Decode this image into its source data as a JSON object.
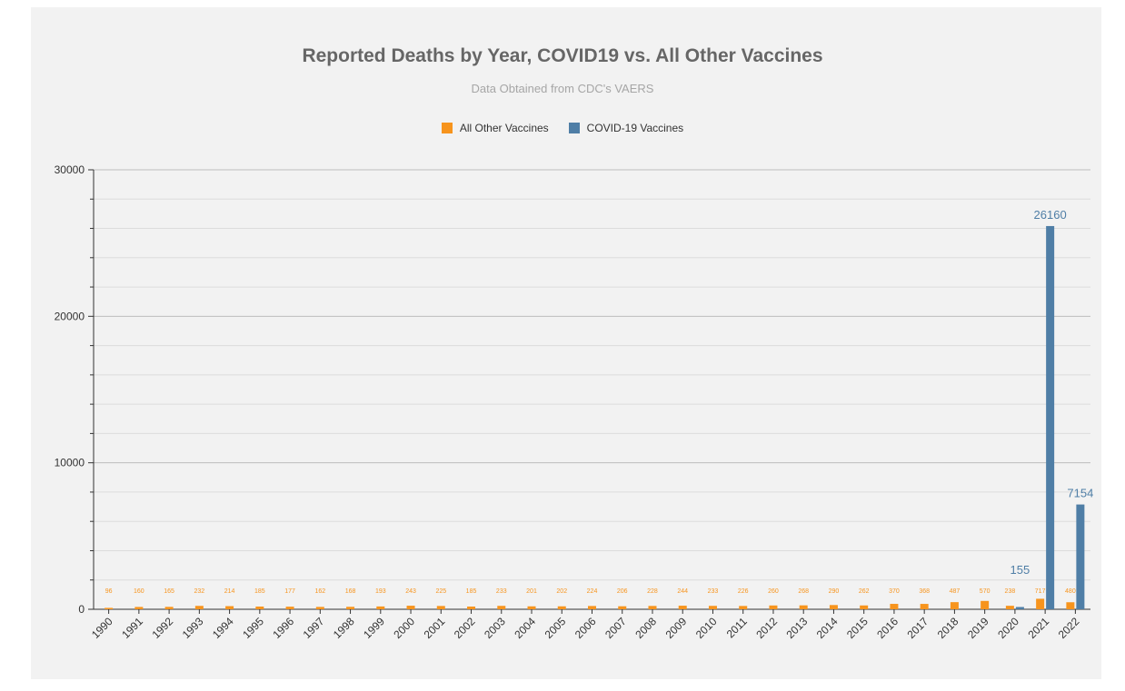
{
  "colors": {
    "all_other": "#f7941d",
    "covid": "#4f7ea6",
    "panel_bg": "#f2f2f2"
  },
  "chart_data": {
    "type": "bar",
    "title": "Reported Deaths by Year, COVID19 vs. All Other Vaccines",
    "subtitle": "Data Obtained from CDC's VAERS",
    "xlabel": "",
    "ylabel": "",
    "ylim": [
      0,
      30000
    ],
    "yticks": [
      "0",
      "10000",
      "20000",
      "30000"
    ],
    "grid": true,
    "legend_position": "top-center",
    "categories": [
      "1990",
      "1991",
      "1992",
      "1993",
      "1994",
      "1995",
      "1996",
      "1997",
      "1998",
      "1999",
      "2000",
      "2001",
      "2002",
      "2003",
      "2004",
      "2005",
      "2006",
      "2007",
      "2008",
      "2009",
      "2010",
      "2011",
      "2012",
      "2013",
      "2014",
      "2015",
      "2016",
      "2017",
      "2018",
      "2019",
      "2020",
      "2021",
      "2022"
    ],
    "series": [
      {
        "name": "All Other Vaccines",
        "color": "#f7941d",
        "values": [
          96,
          160,
          165,
          232,
          214,
          185,
          177,
          162,
          168,
          193,
          243,
          225,
          185,
          233,
          201,
          202,
          224,
          206,
          228,
          244,
          233,
          226,
          260,
          268,
          290,
          262,
          370,
          368,
          487,
          570,
          238,
          717,
          480
        ]
      },
      {
        "name": "COVID-19 Vaccines",
        "color": "#4f7ea6",
        "values": [
          null,
          null,
          null,
          null,
          null,
          null,
          null,
          null,
          null,
          null,
          null,
          null,
          null,
          null,
          null,
          null,
          null,
          null,
          null,
          null,
          null,
          null,
          null,
          null,
          null,
          null,
          null,
          null,
          null,
          null,
          155,
          26160,
          7154
        ]
      }
    ]
  }
}
